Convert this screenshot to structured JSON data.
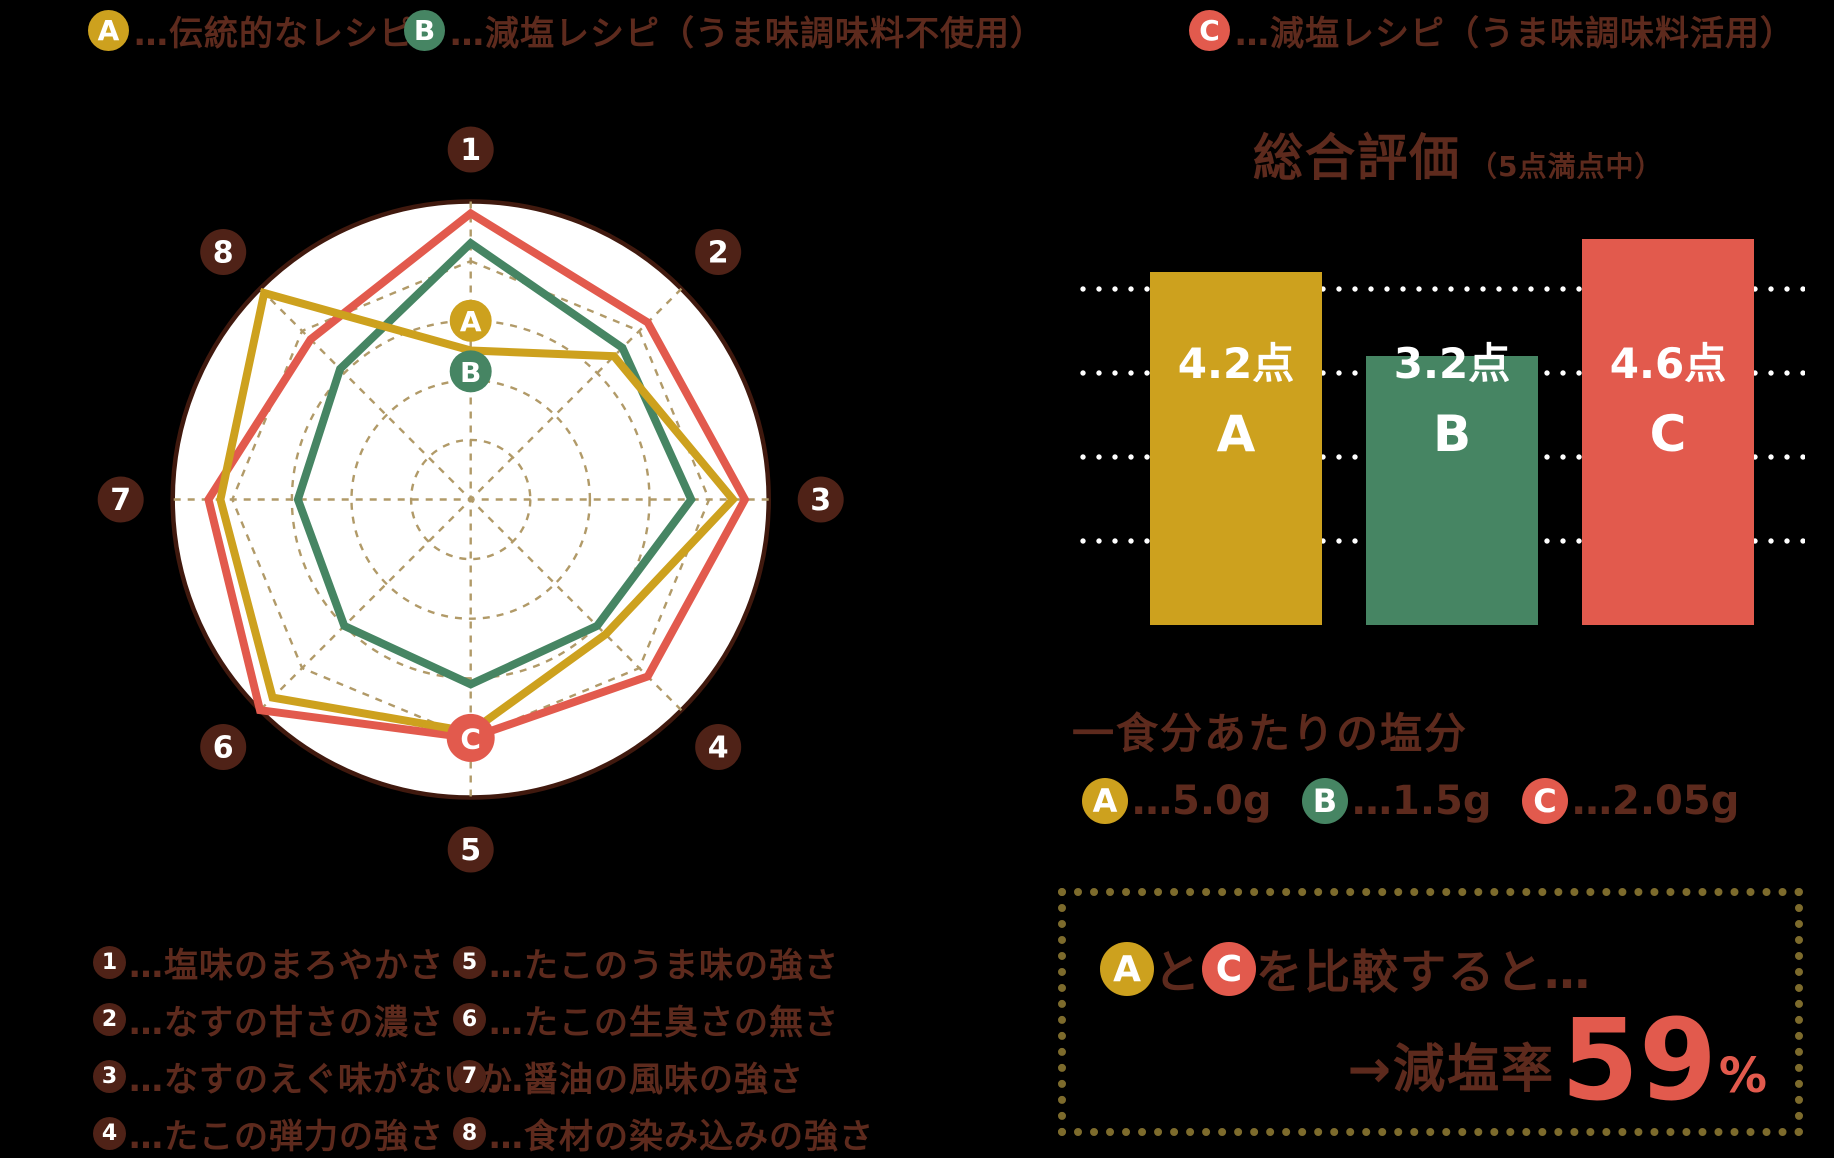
{
  "colors": {
    "background": "#000000",
    "maroon_text": "#5d2a1d",
    "maroon_badge": "#4f2217",
    "radar_outline": "#40190e",
    "grid_tan": "#b19a68",
    "white": "#ffffff",
    "yellow": "#cda11e",
    "green": "#468563",
    "red": "#e25a4d",
    "box_dot": "#7d6b2c"
  },
  "top_legend": {
    "items": [
      {
        "key": "A",
        "label": "…伝統的なレシピ",
        "color_key": "yellow"
      },
      {
        "key": "B",
        "label": "…減塩レシピ（うま味調味料不使用）",
        "color_key": "green"
      },
      {
        "key": "C",
        "label": "…減塩レシピ（うま味調味料活用）",
        "color_key": "red"
      }
    ]
  },
  "chart_data": [
    {
      "type": "radar",
      "max": 5,
      "rings": [
        1,
        2,
        3,
        4
      ],
      "axis_numbers": [
        "1",
        "2",
        "3",
        "4",
        "5",
        "6",
        "7",
        "8"
      ],
      "axes": [
        "塩味のまろやかさ",
        "なすの甘さの濃さ",
        "なすのえぐ味がないか",
        "たこの弾力の強さ",
        "たこのうま味の強さ",
        "たこの生臭さの無さ",
        "醤油の風味の強さ",
        "食材の染み込みの強さ"
      ],
      "series": [
        {
          "name": "A",
          "color_key": "yellow",
          "values": [
            2.5,
            3.4,
            4.4,
            3.2,
            3.9,
            4.7,
            4.2,
            4.9
          ]
        },
        {
          "name": "B",
          "color_key": "green",
          "values": [
            4.3,
            3.6,
            3.7,
            3.0,
            3.1,
            3.0,
            2.9,
            3.1
          ]
        },
        {
          "name": "C",
          "color_key": "red",
          "values": [
            4.8,
            4.2,
            4.6,
            4.2,
            4.0,
            5.0,
            4.4,
            3.8
          ]
        }
      ],
      "markers": [
        {
          "label": "A",
          "axis": 0,
          "value": 3.0,
          "color_key": "yellow"
        },
        {
          "label": "B",
          "axis": 0,
          "value": 2.15,
          "color_key": "green"
        },
        {
          "label": "C",
          "axis": 4,
          "value": 4.0,
          "color_key": "red"
        }
      ]
    },
    {
      "type": "bar",
      "title": "総合評価",
      "subtitle": "（5点満点中）",
      "categories": [
        "A",
        "B",
        "C"
      ],
      "values": [
        4.2,
        3.2,
        4.6
      ],
      "value_labels": [
        "4.2点",
        "3.2点",
        "4.6点"
      ],
      "bar_color_keys": [
        "yellow",
        "green",
        "red"
      ],
      "ylim": [
        0,
        5
      ],
      "gridlines": [
        1,
        2,
        3,
        4
      ],
      "grid_style": "dotted-white",
      "legend_position": "none"
    }
  ],
  "salt_section": {
    "title": "一食分あたりの塩分",
    "items": [
      {
        "key": "A",
        "color_key": "yellow",
        "value": "…5.0g"
      },
      {
        "key": "B",
        "color_key": "green",
        "value": "…1.5g"
      },
      {
        "key": "C",
        "color_key": "red",
        "value": "…2.05g"
      }
    ]
  },
  "comparison_box": {
    "badge_a": "A",
    "between_text": "と",
    "badge_c": "C",
    "after_text": "を比較すると…",
    "arrow_label": "→減塩率",
    "rate_value": "59",
    "rate_unit": "%"
  },
  "axis_legend": {
    "left": [
      {
        "num": "1",
        "label": "…塩味のまろやかさ"
      },
      {
        "num": "2",
        "label": "…なすの甘さの濃さ"
      },
      {
        "num": "3",
        "label": "…なすのえぐ味がないか"
      },
      {
        "num": "4",
        "label": "…たこの弾力の強さ"
      }
    ],
    "right": [
      {
        "num": "5",
        "label": "…たこのうま味の強さ"
      },
      {
        "num": "6",
        "label": "…たこの生臭さの無さ"
      },
      {
        "num": "7",
        "label": "…醤油の風味の強さ"
      },
      {
        "num": "8",
        "label": "…食材の染み込みの強さ"
      }
    ]
  }
}
